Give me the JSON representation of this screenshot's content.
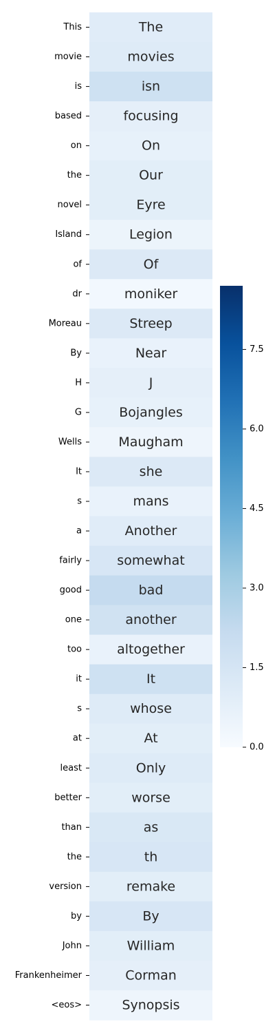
{
  "chart_data": {
    "type": "heatmap",
    "title": "",
    "xlabel": "",
    "ylabel": "",
    "colormap": "Blues",
    "color_range": [
      0,
      8.7
    ],
    "colorbar_ticks": [
      {
        "value": 0.0,
        "label": "0.0"
      },
      {
        "value": 1.5,
        "label": "1.5"
      },
      {
        "value": 3.0,
        "label": "3.0"
      },
      {
        "value": 4.5,
        "label": "4.5"
      },
      {
        "value": 6.0,
        "label": "6.0"
      },
      {
        "value": 7.5,
        "label": "7.5"
      }
    ],
    "row_labels": [
      "This",
      "movie",
      "is",
      "based",
      "on",
      "the",
      "novel",
      "Island",
      "of",
      "dr",
      "Moreau",
      "By",
      "H",
      "G",
      "Wells",
      "It",
      "s",
      "a",
      "fairly",
      "good",
      "one",
      "too",
      "it",
      "s",
      "at",
      "least",
      "better",
      "than",
      "the",
      "version",
      "by",
      "John",
      "Frankenheimer",
      "<eos>"
    ],
    "cell_text": [
      "The",
      "movies",
      "isn",
      "focusing",
      "On",
      "Our",
      "Eyre",
      "Legion",
      "Of",
      "moniker",
      "Streep",
      "Near",
      "J",
      "Bojangles",
      "Maugham",
      "she",
      "mans",
      "Another",
      "somewhat",
      "bad",
      "another",
      "altogether",
      "It",
      "whose",
      "At",
      "Only",
      "worse",
      "as",
      "th",
      "remake",
      "By",
      "William",
      "Corman",
      "Synopsis"
    ],
    "values": [
      1.0,
      1.1,
      1.8,
      0.8,
      0.7,
      0.9,
      0.9,
      0.5,
      1.2,
      0.2,
      1.2,
      0.6,
      0.8,
      0.7,
      0.4,
      1.2,
      0.6,
      1.0,
      1.4,
      2.2,
      1.7,
      0.6,
      1.8,
      1.1,
      0.9,
      1.1,
      0.9,
      1.3,
      1.4,
      0.9,
      1.4,
      0.9,
      0.8,
      0.4
    ]
  }
}
